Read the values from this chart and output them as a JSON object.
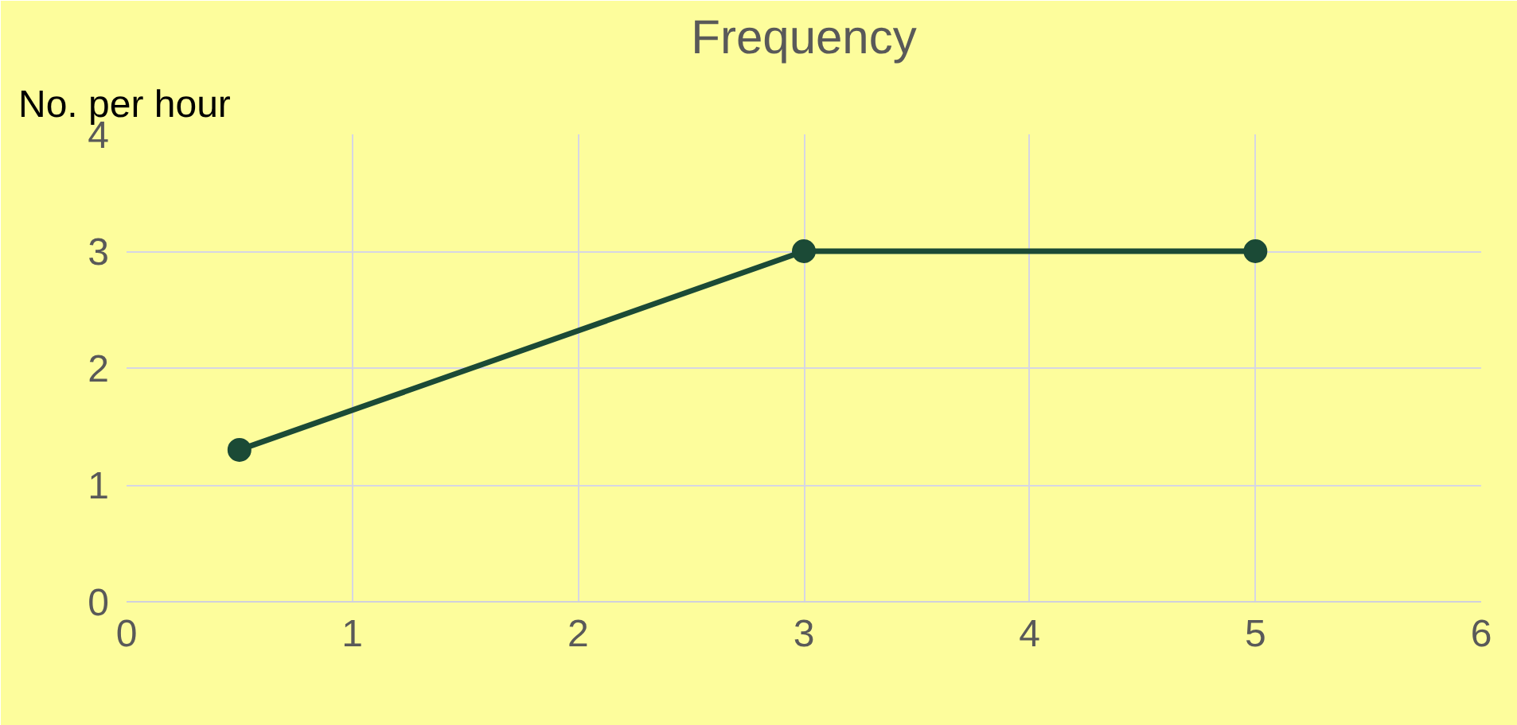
{
  "chart_data": {
    "type": "line",
    "title": "Frequency",
    "ylabel": "No. per hour",
    "x": [
      0.5,
      3,
      5
    ],
    "values": [
      1.3,
      3,
      3
    ],
    "color": "#1b4a36",
    "xlim": [
      0,
      6
    ],
    "ylim": [
      0,
      4
    ],
    "xticks": [
      0,
      1,
      2,
      3,
      4,
      5,
      6
    ],
    "yticks": [
      0,
      1,
      2,
      3,
      4
    ],
    "grid": true,
    "marker": "circle",
    "line_style": "solid"
  }
}
